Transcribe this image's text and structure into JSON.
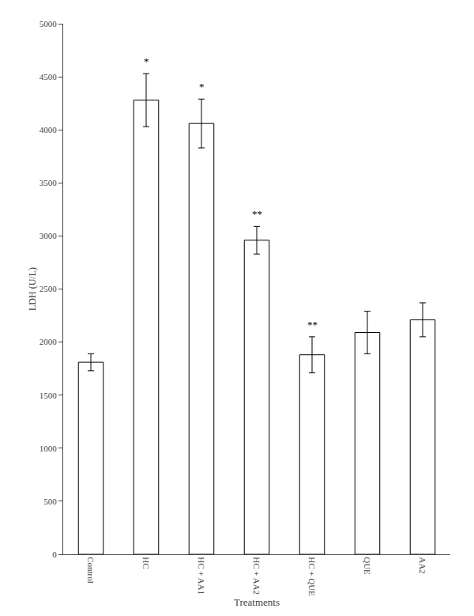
{
  "chart_data": {
    "type": "bar",
    "categories": [
      "Control",
      "HC",
      "HC + AA1",
      "HC + AA2",
      "HC + QUE",
      "QUE",
      "AA2"
    ],
    "values": [
      1810,
      4280,
      4060,
      2960,
      1880,
      2090,
      2210
    ],
    "errors": [
      80,
      250,
      230,
      130,
      170,
      200,
      160
    ],
    "annotations": [
      {
        "category": "HC",
        "text": "*"
      },
      {
        "category": "HC + AA1",
        "text": "*"
      },
      {
        "category": "HC + AA2",
        "text": "**"
      },
      {
        "category": "HC + QUE",
        "text": "**"
      }
    ],
    "xlabel": "Treatments",
    "ylabel": "LDH (U/L)",
    "ylim": [
      0,
      5000
    ],
    "yticks": [
      0,
      500,
      1000,
      1500,
      2000,
      2500,
      3000,
      3500,
      4000,
      4500,
      5000
    ],
    "color": "#ffffff",
    "grid": false
  }
}
